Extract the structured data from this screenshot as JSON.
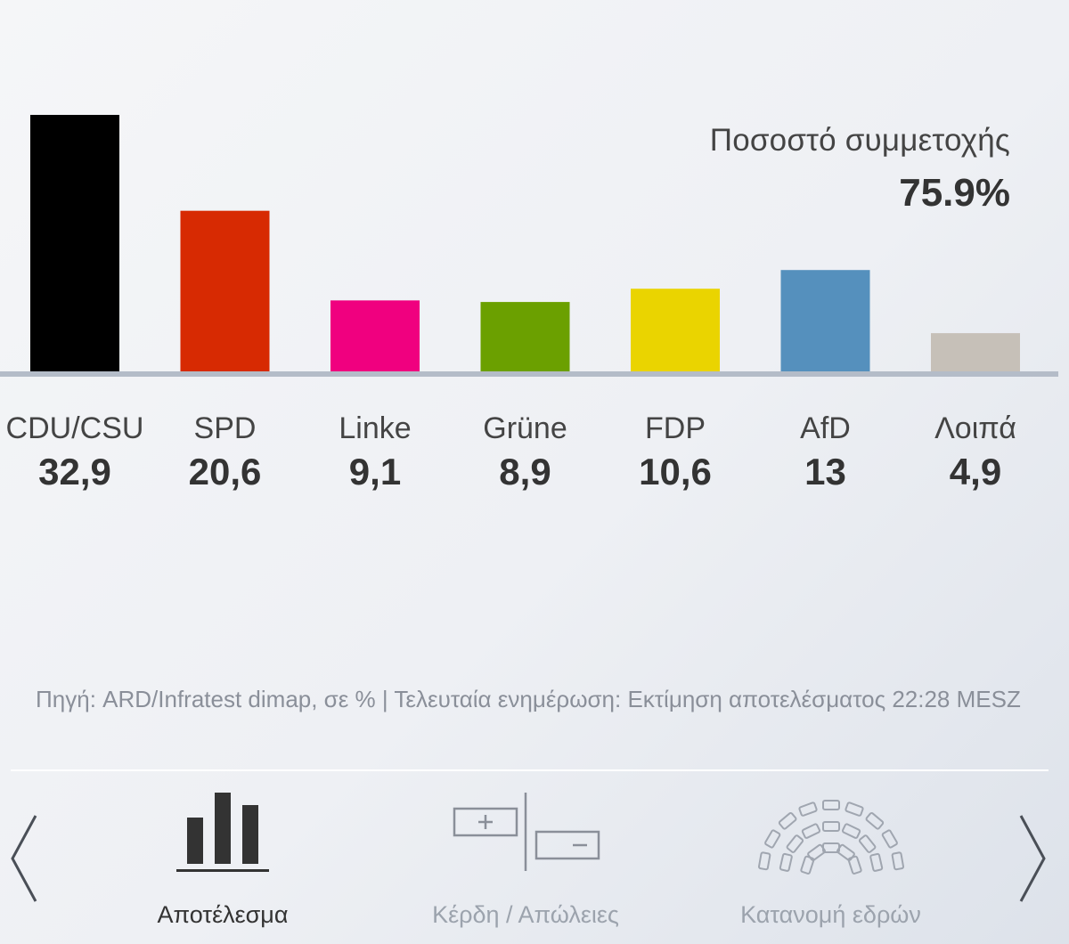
{
  "chart_data": {
    "type": "bar",
    "categories": [
      "CDU/CSU",
      "SPD",
      "Linke",
      "Grüne",
      "FDP",
      "AfD",
      "Λοιπά"
    ],
    "values": [
      32.9,
      20.6,
      9.1,
      8.9,
      10.6,
      13,
      4.9
    ],
    "value_labels": [
      "32,9",
      "20,6",
      "9,1",
      "8,9",
      "10,6",
      "13",
      "4,9"
    ],
    "colors": [
      "#000000",
      "#d72a02",
      "#f0007f",
      "#6ba000",
      "#ead400",
      "#5590bd",
      "#c6c0b8"
    ],
    "ylim": [
      0,
      32.9
    ],
    "grid": false,
    "legend": "none"
  },
  "turnout": {
    "label": "Ποσοστό συμμετοχής",
    "value": "75.9%"
  },
  "source": {
    "text": "Πηγή: ARD/Infratest dimap, σε % | Τελευταία ενημέρωση: Εκτίμηση αποτελέσματος 22:28 MESZ"
  },
  "nav": {
    "tabs": [
      {
        "label": "Αποτέλεσμα",
        "icon": "bar-chart-icon",
        "active": true
      },
      {
        "label": "Κέρδη / Απώλειες",
        "icon": "gains-losses-icon",
        "active": false
      },
      {
        "label": "Κατανομή εδρών",
        "icon": "parliament-seats-icon",
        "active": false
      }
    ],
    "prev_icon": "chevron-left-icon",
    "next_icon": "chevron-right-icon"
  }
}
